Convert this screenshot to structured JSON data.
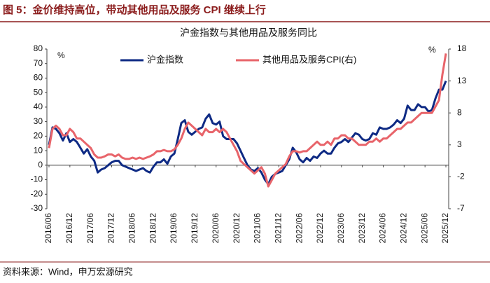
{
  "header": {
    "title": "图 5：金价维持高位，带动其他用品及服务 CPI 继续上行"
  },
  "source": "资料来源：Wind，申万宏源研究",
  "chart_data": {
    "type": "line",
    "title": "沪金指数与其他用品及服务同比",
    "y_unit": "%",
    "y2_unit": "%",
    "categories": [
      "2016/06",
      null,
      null,
      null,
      null,
      null,
      "2016/12",
      null,
      null,
      null,
      null,
      null,
      "2017/06",
      null,
      null,
      null,
      null,
      null,
      "2017/12",
      null,
      null,
      null,
      null,
      null,
      "2018/06",
      null,
      null,
      null,
      null,
      null,
      "2018/12",
      null,
      null,
      null,
      null,
      null,
      "2019/06",
      null,
      null,
      null,
      null,
      null,
      "2019/12",
      null,
      null,
      null,
      null,
      null,
      "2020/06",
      null,
      null,
      null,
      null,
      null,
      "2020/12",
      null,
      null,
      null,
      null,
      null,
      "2021/06",
      null,
      null,
      null,
      null,
      null,
      "2021/12",
      null,
      null,
      null,
      null,
      null,
      "2022/06",
      null,
      null,
      null,
      null,
      null,
      "2022/12",
      null,
      null,
      null,
      null,
      null,
      "2023/06",
      null,
      null,
      null,
      null,
      null,
      "2023/12",
      null,
      null,
      null,
      null,
      null,
      "2024/06",
      null,
      null,
      null,
      null,
      null,
      "2024/12",
      null,
      null,
      null,
      null,
      null,
      "2025/06",
      null,
      null,
      null,
      null,
      null,
      "2025/12"
    ],
    "series": [
      {
        "name": "沪金指数",
        "color": "#0e2a84",
        "axis": "y",
        "values": [
          14,
          26,
          25,
          22,
          17,
          22,
          16,
          18,
          16,
          12,
          8,
          11,
          6,
          3,
          -5,
          -3,
          -2,
          0,
          2,
          3,
          3,
          0,
          -1,
          -2,
          -3,
          -4,
          -3,
          -2,
          -4,
          -5,
          -1,
          2,
          2,
          4,
          1,
          6,
          8,
          18,
          29,
          31,
          23,
          21,
          23,
          25,
          26,
          32,
          35,
          29,
          28,
          30,
          20,
          18,
          18,
          18,
          15,
          10,
          5,
          0,
          -3,
          -4,
          -2,
          -5,
          -10,
          -13,
          -8,
          -6,
          -5,
          -4,
          0,
          4,
          12,
          9,
          4,
          2,
          5,
          3,
          6,
          5,
          8,
          10,
          8,
          8,
          12,
          15,
          16,
          18,
          16,
          19,
          22,
          21,
          18,
          17,
          18,
          22,
          21,
          26,
          25,
          25,
          26,
          28,
          31,
          29,
          32,
          41,
          38,
          38,
          42,
          40,
          40,
          37,
          38,
          46,
          52,
          52,
          58
        ]
      },
      {
        "name": "其他用品及服务CPI(右)",
        "color": "#e8646a",
        "axis": "y2",
        "values": [
          2.5,
          5.5,
          6,
          5.5,
          4.5,
          4.5,
          5.5,
          5,
          4,
          4,
          3.5,
          3,
          2.5,
          1.5,
          1,
          1,
          1.2,
          1.5,
          1.5,
          1.2,
          1.5,
          1,
          0.8,
          0.8,
          1,
          0.8,
          1,
          0.8,
          1,
          1.2,
          1.5,
          2,
          2,
          2.2,
          2,
          2,
          2.3,
          3,
          4,
          5.5,
          6.5,
          6,
          5.5,
          5,
          4.5,
          5.5,
          5,
          5,
          5.5,
          5,
          5.5,
          5,
          4,
          3,
          2,
          0.5,
          0,
          -0.5,
          -1,
          -1.5,
          -1,
          -0.5,
          -1.5,
          -3.5,
          -2.5,
          -1.5,
          -1,
          -0.5,
          0,
          1.2,
          2,
          2,
          1.8,
          2,
          2,
          2.5,
          3,
          3.5,
          3,
          3,
          3.5,
          3,
          4,
          4,
          4.5,
          4.5,
          4,
          4,
          3.5,
          3,
          3,
          3,
          3.5,
          3.5,
          4,
          3.5,
          4,
          4,
          4.5,
          5,
          5.5,
          5.5,
          6,
          6.5,
          6.5,
          7,
          7.5,
          8,
          8,
          8,
          8,
          9,
          10,
          14,
          17.3
        ]
      }
    ],
    "ylim": [
      -30,
      80
    ],
    "yticks": [
      -30,
      -20,
      -10,
      0,
      10,
      20,
      30,
      40,
      50,
      60,
      70,
      80
    ],
    "y2lim": [
      -7,
      18
    ],
    "y2ticks": [
      -7,
      -2,
      3,
      8,
      13,
      18
    ],
    "grid": false
  }
}
